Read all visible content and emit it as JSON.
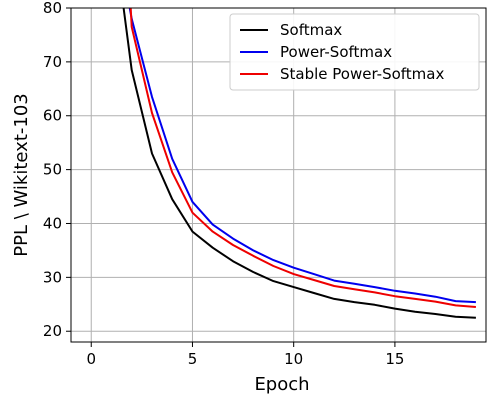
{
  "chart_data": {
    "type": "line",
    "xlabel": "Epoch",
    "ylabel": "PPL \\ Wikitext-103",
    "xlim": [
      -1,
      19.5
    ],
    "ylim": [
      18,
      80
    ],
    "xticks": [
      0,
      5,
      10,
      15
    ],
    "yticks": [
      20,
      30,
      40,
      50,
      60,
      70,
      80
    ],
    "grid": true,
    "legend_position": "top-right",
    "series": [
      {
        "name": "Softmax",
        "color": "#000000",
        "x": [
          1.6,
          2,
          3,
          4,
          5,
          6,
          7,
          8,
          9,
          10,
          11,
          12,
          13,
          14,
          15,
          16,
          17,
          18,
          19
        ],
        "y": [
          80,
          68.5,
          53,
          44.5,
          38.5,
          35.5,
          33,
          31,
          29.3,
          28.2,
          27.1,
          26,
          25.4,
          24.9,
          24.2,
          23.6,
          23.2,
          22.7,
          22.5
        ]
      },
      {
        "name": "Power-Softmax",
        "color": "#0000ee",
        "x": [
          1.9,
          2,
          3,
          4,
          5,
          6,
          7,
          8,
          9,
          10,
          11,
          12,
          13,
          14,
          15,
          16,
          17,
          18,
          19
        ],
        "y": [
          80,
          78,
          63.5,
          52,
          44,
          39.8,
          37.2,
          35,
          33.2,
          31.8,
          30.6,
          29.4,
          28.8,
          28.2,
          27.5,
          27,
          26.4,
          25.6,
          25.4
        ]
      },
      {
        "name": "Stable Power-Softmax",
        "color": "#ee0000",
        "x": [
          1.95,
          2,
          3,
          4,
          5,
          6,
          7,
          8,
          9,
          10,
          11,
          12,
          13,
          14,
          15,
          16,
          17,
          18,
          19
        ],
        "y": [
          80,
          76.5,
          60.5,
          49.5,
          42,
          38.5,
          36,
          34,
          32.1,
          30.6,
          29.5,
          28.4,
          27.8,
          27.2,
          26.5,
          26,
          25.5,
          24.8,
          24.5
        ]
      }
    ]
  }
}
